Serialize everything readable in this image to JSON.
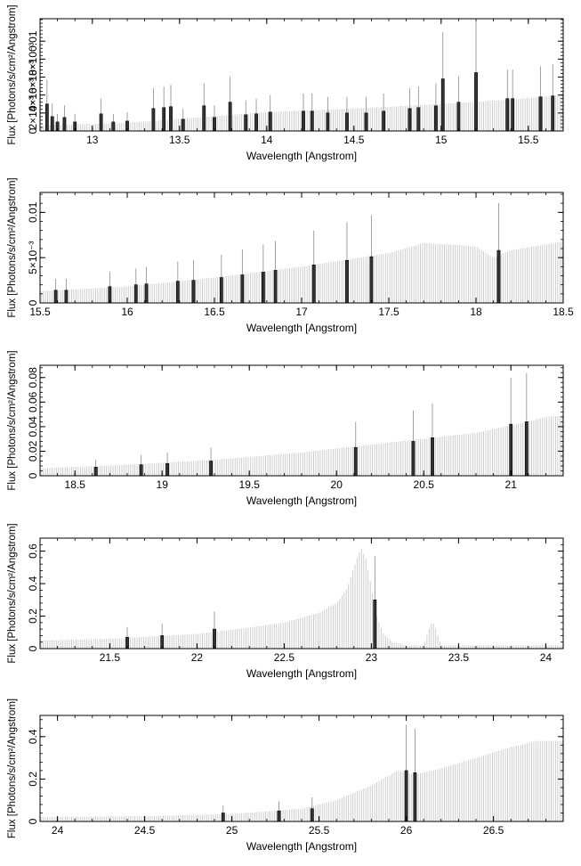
{
  "chart_data": [
    {
      "type": "bar",
      "xlabel": "Wavelength [Angstrom]",
      "ylabel": "Flux [Photons/s/cm²/Angstrom]",
      "xlim": [
        12.7,
        15.7
      ],
      "ylim": [
        0,
        0.0125
      ],
      "x_ticks": [
        13,
        13.5,
        14,
        14.5,
        15,
        15.5
      ],
      "x_tick_labels": [
        "13",
        "13.5",
        "14",
        "14.5",
        "15",
        "15.5"
      ],
      "y_ticks": [
        0,
        0.002,
        0.004,
        0.006,
        0.008,
        0.01
      ],
      "y_tick_labels": [
        "0",
        "2×10⁻³",
        "4×10⁻³",
        "6×10⁻³",
        "8×10⁻³",
        "0.01"
      ],
      "continuum": [
        [
          12.7,
          0.0006
        ],
        [
          13.2,
          0.0009
        ],
        [
          13.6,
          0.0015
        ],
        [
          14.0,
          0.0021
        ],
        [
          14.5,
          0.0025
        ],
        [
          15.0,
          0.003
        ],
        [
          15.4,
          0.0035
        ],
        [
          15.7,
          0.004
        ]
      ],
      "lines": [
        {
          "x": 12.74,
          "y": 0.003
        },
        {
          "x": 12.77,
          "y": 0.0016
        },
        {
          "x": 12.8,
          "y": 0.001
        },
        {
          "x": 12.84,
          "y": 0.0015
        },
        {
          "x": 12.9,
          "y": 0.001
        },
        {
          "x": 13.05,
          "y": 0.0019
        },
        {
          "x": 13.12,
          "y": 0.001
        },
        {
          "x": 13.2,
          "y": 0.0011
        },
        {
          "x": 13.35,
          "y": 0.0025
        },
        {
          "x": 13.41,
          "y": 0.0026
        },
        {
          "x": 13.45,
          "y": 0.0027
        },
        {
          "x": 13.52,
          "y": 0.0013
        },
        {
          "x": 13.64,
          "y": 0.0028
        },
        {
          "x": 13.7,
          "y": 0.0015
        },
        {
          "x": 13.79,
          "y": 0.0032
        },
        {
          "x": 13.88,
          "y": 0.0018
        },
        {
          "x": 13.94,
          "y": 0.0019
        },
        {
          "x": 14.02,
          "y": 0.0021
        },
        {
          "x": 14.21,
          "y": 0.0022
        },
        {
          "x": 14.26,
          "y": 0.0022
        },
        {
          "x": 14.35,
          "y": 0.002
        },
        {
          "x": 14.46,
          "y": 0.002
        },
        {
          "x": 14.57,
          "y": 0.002
        },
        {
          "x": 14.67,
          "y": 0.0022
        },
        {
          "x": 14.82,
          "y": 0.0025
        },
        {
          "x": 14.87,
          "y": 0.0026
        },
        {
          "x": 14.97,
          "y": 0.0028
        },
        {
          "x": 15.01,
          "y": 0.0058
        },
        {
          "x": 15.1,
          "y": 0.0032
        },
        {
          "x": 15.2,
          "y": 0.0065
        },
        {
          "x": 15.38,
          "y": 0.0036
        },
        {
          "x": 15.41,
          "y": 0.0036
        },
        {
          "x": 15.57,
          "y": 0.0038
        },
        {
          "x": 15.64,
          "y": 0.0039
        }
      ]
    },
    {
      "type": "bar",
      "xlabel": "Wavelength [Angstrom]",
      "ylabel": "Flux [Photons/s/cm²/Angstrom]",
      "xlim": [
        15.5,
        18.5
      ],
      "ylim": [
        0,
        0.0122
      ],
      "x_ticks": [
        15.5,
        16,
        16.5,
        17,
        17.5,
        18,
        18.5
      ],
      "x_tick_labels": [
        "15.5",
        "16",
        "16.5",
        "17",
        "17.5",
        "18",
        "18.5"
      ],
      "y_ticks": [
        0,
        0.005,
        0.01
      ],
      "y_tick_labels": [
        "0",
        "5×10⁻³",
        "0.01"
      ],
      "continuum": [
        [
          15.5,
          0.0013
        ],
        [
          16.0,
          0.0018
        ],
        [
          16.5,
          0.0028
        ],
        [
          17.0,
          0.004
        ],
        [
          17.5,
          0.0055
        ],
        [
          17.7,
          0.0066
        ],
        [
          17.9,
          0.0064
        ],
        [
          18.0,
          0.0062
        ],
        [
          18.1,
          0.005
        ],
        [
          18.2,
          0.0058
        ],
        [
          18.5,
          0.0068
        ]
      ],
      "lines": [
        {
          "x": 15.59,
          "y": 0.0014
        },
        {
          "x": 15.65,
          "y": 0.0014
        },
        {
          "x": 15.9,
          "y": 0.0018
        },
        {
          "x": 16.05,
          "y": 0.002
        },
        {
          "x": 16.11,
          "y": 0.0021
        },
        {
          "x": 16.29,
          "y": 0.0024
        },
        {
          "x": 16.38,
          "y": 0.0025
        },
        {
          "x": 16.54,
          "y": 0.0028
        },
        {
          "x": 16.66,
          "y": 0.0031
        },
        {
          "x": 16.78,
          "y": 0.0034
        },
        {
          "x": 16.85,
          "y": 0.0036
        },
        {
          "x": 17.07,
          "y": 0.0042
        },
        {
          "x": 17.26,
          "y": 0.0047
        },
        {
          "x": 17.4,
          "y": 0.0051
        },
        {
          "x": 18.13,
          "y": 0.0058
        }
      ]
    },
    {
      "type": "bar",
      "xlabel": "Wavelength [Angstrom]",
      "ylabel": "Flux [Photons/s/cm²/Angstrom]",
      "xlim": [
        18.3,
        21.3
      ],
      "ylim": [
        0,
        0.09
      ],
      "x_ticks": [
        18.5,
        19,
        19.5,
        20,
        20.5,
        21
      ],
      "x_tick_labels": [
        "18.5",
        "19",
        "19.5",
        "20",
        "20.5",
        "21"
      ],
      "y_ticks": [
        0,
        0.02,
        0.04,
        0.06,
        0.08
      ],
      "y_tick_labels": [
        "0",
        "0.02",
        "0.04",
        "0.06",
        "0.08"
      ],
      "continuum": [
        [
          18.3,
          0.006
        ],
        [
          18.8,
          0.009
        ],
        [
          19.3,
          0.013
        ],
        [
          19.8,
          0.019
        ],
        [
          20.3,
          0.027
        ],
        [
          20.8,
          0.035
        ],
        [
          21.1,
          0.044
        ],
        [
          21.2,
          0.048
        ],
        [
          21.3,
          0.049
        ]
      ],
      "lines": [
        {
          "x": 18.62,
          "y": 0.007
        },
        {
          "x": 18.88,
          "y": 0.009
        },
        {
          "x": 19.03,
          "y": 0.01
        },
        {
          "x": 19.28,
          "y": 0.012
        },
        {
          "x": 20.11,
          "y": 0.023
        },
        {
          "x": 20.44,
          "y": 0.028
        },
        {
          "x": 20.55,
          "y": 0.031
        },
        {
          "x": 21.0,
          "y": 0.042
        },
        {
          "x": 21.09,
          "y": 0.044
        }
      ]
    },
    {
      "type": "bar",
      "xlabel": "Wavelength [Angstrom]",
      "ylabel": "Flux [Photons/s/cm²/Angstrom]",
      "xlim": [
        21.1,
        24.1
      ],
      "ylim": [
        0,
        0.68
      ],
      "x_ticks": [
        21.5,
        22,
        22.5,
        23,
        23.5,
        24
      ],
      "x_tick_labels": [
        "21.5",
        "22",
        "22.5",
        "23",
        "23.5",
        "24"
      ],
      "y_ticks": [
        0,
        0.2,
        0.4,
        0.6
      ],
      "y_tick_labels": [
        "0",
        "0.2",
        "0.4",
        "0.6"
      ],
      "continuum": [
        [
          21.1,
          0.05
        ],
        [
          21.5,
          0.06
        ],
        [
          22.0,
          0.09
        ],
        [
          22.3,
          0.13
        ],
        [
          22.5,
          0.16
        ],
        [
          22.7,
          0.22
        ],
        [
          22.8,
          0.28
        ],
        [
          22.86,
          0.37
        ],
        [
          22.9,
          0.5
        ],
        [
          22.94,
          0.62
        ],
        [
          22.97,
          0.55
        ],
        [
          23.0,
          0.38
        ],
        [
          23.03,
          0.2
        ],
        [
          23.07,
          0.09
        ],
        [
          23.12,
          0.04
        ],
        [
          23.2,
          0.02
        ],
        [
          23.3,
          0.02
        ],
        [
          23.33,
          0.12
        ],
        [
          23.35,
          0.17
        ],
        [
          23.37,
          0.12
        ],
        [
          23.4,
          0.02
        ],
        [
          24.1,
          0.02
        ]
      ],
      "lines": [
        {
          "x": 21.6,
          "y": 0.07
        },
        {
          "x": 21.8,
          "y": 0.08
        },
        {
          "x": 22.1,
          "y": 0.12
        },
        {
          "x": 23.02,
          "y": 0.3
        }
      ]
    },
    {
      "type": "bar",
      "xlabel": "Wavelength [Angstrom]",
      "ylabel": "Flux [Photons/s/cm²/Angstrom]",
      "xlim": [
        23.9,
        26.9
      ],
      "ylim": [
        0,
        0.5
      ],
      "x_ticks": [
        24,
        24.5,
        25,
        25.5,
        26,
        26.5
      ],
      "x_tick_labels": [
        "24",
        "24.5",
        "25",
        "25.5",
        "26",
        "26.5"
      ],
      "y_ticks": [
        0,
        0.2,
        0.4
      ],
      "y_tick_labels": [
        "0",
        "0.2",
        "0.4"
      ],
      "continuum": [
        [
          23.9,
          0.02
        ],
        [
          24.5,
          0.025
        ],
        [
          25.0,
          0.035
        ],
        [
          25.4,
          0.06
        ],
        [
          25.6,
          0.1
        ],
        [
          25.8,
          0.17
        ],
        [
          25.95,
          0.24
        ],
        [
          26.05,
          0.22
        ],
        [
          26.2,
          0.25
        ],
        [
          26.4,
          0.3
        ],
        [
          26.6,
          0.35
        ],
        [
          26.75,
          0.38
        ],
        [
          26.9,
          0.38
        ]
      ],
      "lines": [
        {
          "x": 24.95,
          "y": 0.04
        },
        {
          "x": 25.27,
          "y": 0.05
        },
        {
          "x": 25.46,
          "y": 0.06
        },
        {
          "x": 26.0,
          "y": 0.24
        },
        {
          "x": 26.05,
          "y": 0.23
        }
      ]
    }
  ]
}
